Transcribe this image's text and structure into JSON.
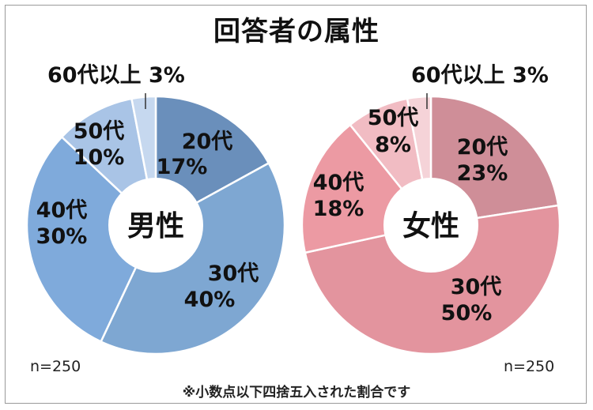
{
  "title": "回答者の属性",
  "footnote": "※小数点以下四捨五入された割合です",
  "chart_data": [
    {
      "type": "pie",
      "center_label": "男性",
      "n_label": "n=250",
      "categories": [
        "20代",
        "30代",
        "40代",
        "50代",
        "60代以上"
      ],
      "values": [
        17,
        40,
        30,
        10,
        3
      ],
      "value_labels": [
        "17%",
        "40%",
        "30%",
        "10%",
        "3%"
      ],
      "colors": [
        "#6a8fbb",
        "#7ea7d2",
        "#7faadb",
        "#a9c4e6",
        "#c6d8ef"
      ],
      "outside_label": "60代以上 3%"
    },
    {
      "type": "pie",
      "center_label": "女性",
      "n_label": "n=250",
      "categories": [
        "20代",
        "30代",
        "40代",
        "50代",
        "60代以上"
      ],
      "values": [
        23,
        50,
        18,
        8,
        3
      ],
      "value_labels": [
        "23%",
        "50%",
        "18%",
        "8%",
        "3%"
      ],
      "colors": [
        "#cf8e98",
        "#e3949e",
        "#ec9aa3",
        "#f1bcc3",
        "#f5d3d8"
      ],
      "outside_label": "60代以上 3%"
    }
  ]
}
